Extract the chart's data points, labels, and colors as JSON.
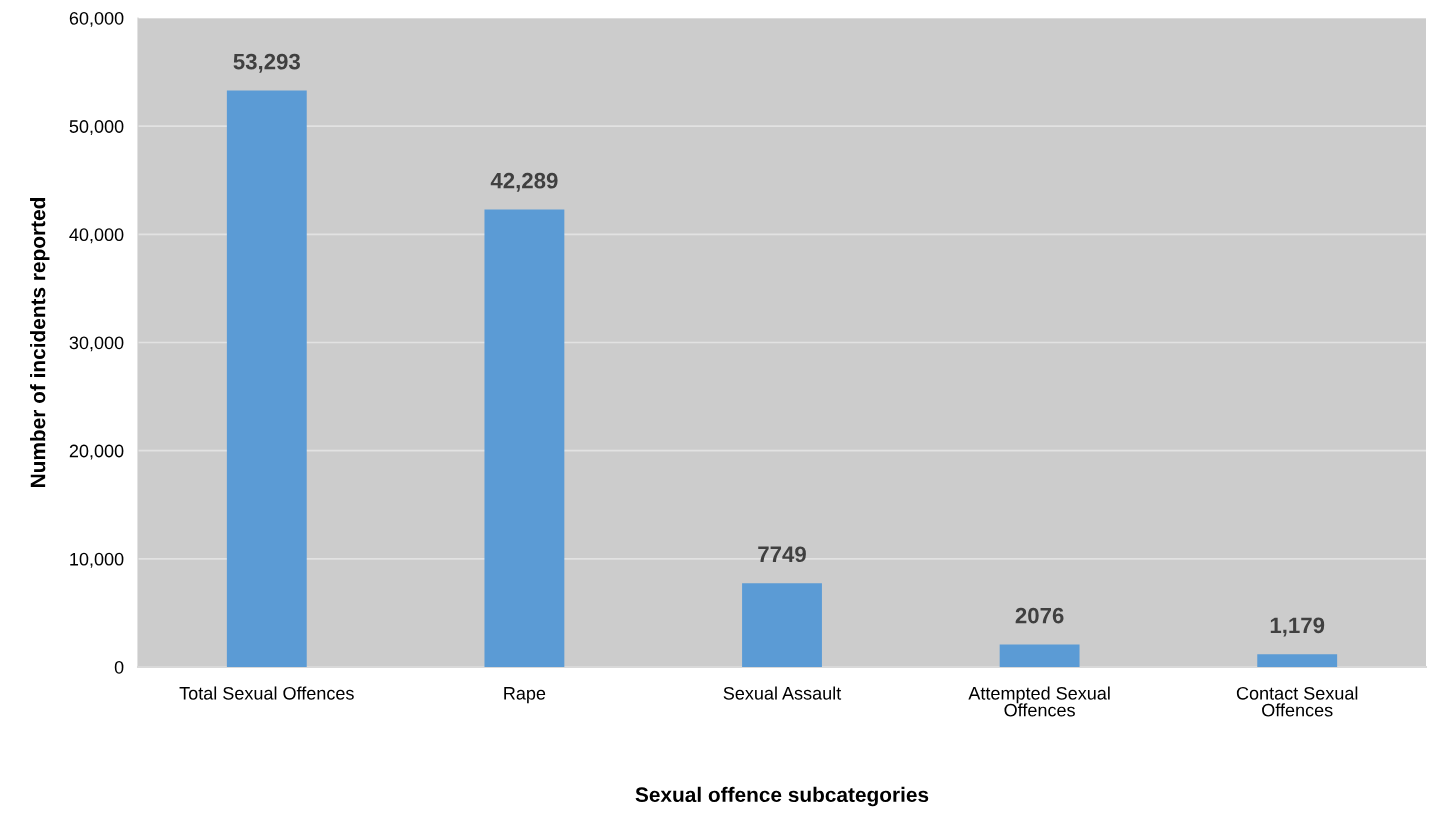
{
  "chart_data": {
    "type": "bar",
    "xlabel": "Sexual offence subcategories",
    "ylabel": "Number of incidents reported",
    "categories": [
      "Total Sexual Offences",
      "Rape",
      "Sexual Assault",
      "Attempted Sexual\nOffences",
      "Contact Sexual\nOffences"
    ],
    "values": [
      53293,
      42289,
      7749,
      2076,
      1179
    ],
    "value_labels": [
      "53,293",
      "42,289",
      "7749",
      "2076",
      "1,179"
    ],
    "color": "#5b9bd5",
    "ylim": [
      0,
      60000
    ],
    "yticks": [
      0,
      {
        "value": 10000,
        "label": "10,000"
      },
      {
        "value": 20000,
        "label": "20,000"
      },
      {
        "value": 30000,
        "label": "30,000"
      },
      {
        "value": 40000,
        "label": "40,000"
      },
      {
        "value": 50000,
        "label": "50,000"
      },
      {
        "value": 60000,
        "label": "60,000"
      }
    ],
    "grid": "y",
    "legend": false
  }
}
